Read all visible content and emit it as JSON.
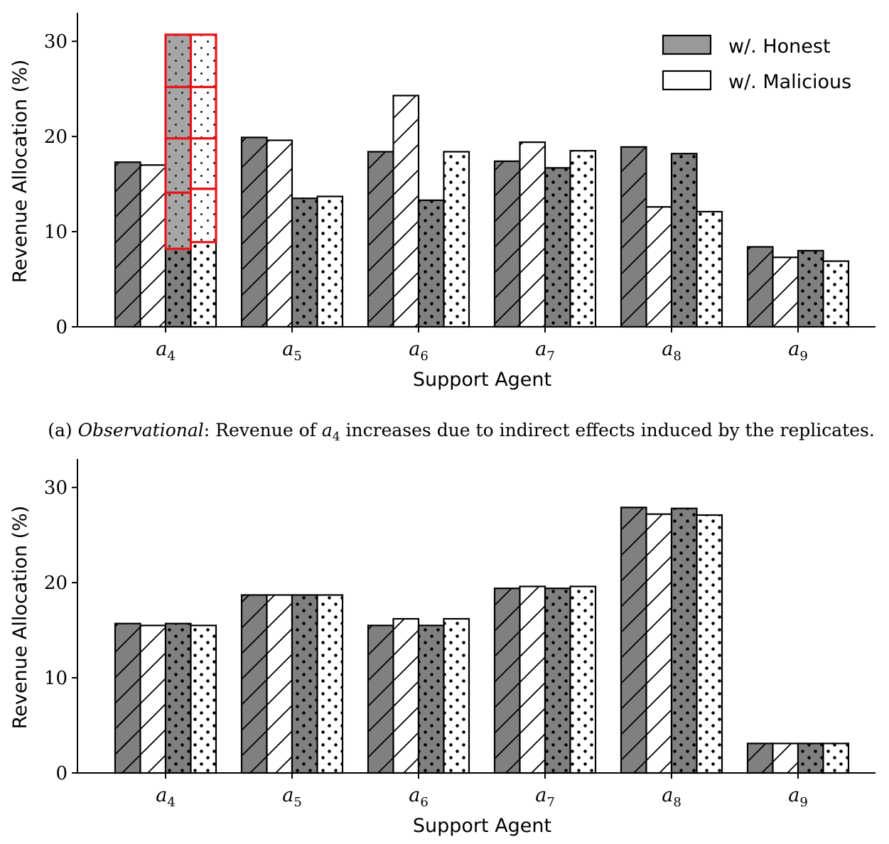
{
  "colors": {
    "honest_fill": "#808080",
    "malicious_fill": "#ffffff",
    "legend_honest_fill": "#999999",
    "edge": "#000000",
    "highlight": "#e8141a"
  },
  "legend": {
    "honest": "w/. Honest",
    "malicious": "w/. Malicious"
  },
  "caption_a": {
    "prefix": "(a) ",
    "emph": "Observational",
    "after_emph": ": Revenue of ",
    "agent_base": "a",
    "agent_sub": "4",
    "suffix": " increases due to indirect effects induced by the replicates."
  },
  "chart_data": [
    {
      "type": "bar",
      "panel": "a",
      "xlabel": "Support Agent",
      "ylabel": "Revenue Allocation (%)",
      "ylim": [
        0,
        33
      ],
      "yticks": [
        0,
        10,
        20,
        30
      ],
      "categories": [
        {
          "base": "a",
          "sub": "4"
        },
        {
          "base": "a",
          "sub": "5"
        },
        {
          "base": "a",
          "sub": "6"
        },
        {
          "base": "a",
          "sub": "7"
        },
        {
          "base": "a",
          "sub": "8"
        },
        {
          "base": "a",
          "sub": "9"
        }
      ],
      "series": [
        {
          "name": "Honest (hatched)",
          "fill": "honest",
          "pattern": "hatch",
          "values": [
            17.3,
            19.9,
            18.4,
            17.4,
            18.9,
            8.4
          ]
        },
        {
          "name": "Malicious (hatched)",
          "fill": "malicious",
          "pattern": "hatch",
          "values": [
            17.0,
            19.6,
            24.3,
            19.4,
            12.6,
            7.3
          ]
        },
        {
          "name": "Honest (dotted)",
          "fill": "honest",
          "pattern": "dots",
          "values": [
            8.2,
            13.5,
            13.3,
            16.7,
            18.2,
            8.0
          ]
        },
        {
          "name": "Malicious (dotted)",
          "fill": "malicious",
          "pattern": "dots",
          "values": [
            8.9,
            13.7,
            18.4,
            18.5,
            12.1,
            6.9
          ]
        }
      ],
      "stacked_replicates": [
        {
          "category_index": 0,
          "series_index": 2,
          "segments": [
            8.2,
            14.1,
            19.8,
            25.2,
            30.7
          ]
        },
        {
          "category_index": 0,
          "series_index": 3,
          "segments": [
            8.9,
            14.5,
            19.8,
            25.2,
            30.7
          ]
        }
      ]
    },
    {
      "type": "bar",
      "panel": "b",
      "xlabel": "Support Agent",
      "ylabel": "Revenue Allocation (%)",
      "ylim": [
        0,
        33
      ],
      "yticks": [
        0,
        10,
        20,
        30
      ],
      "categories": [
        {
          "base": "a",
          "sub": "4"
        },
        {
          "base": "a",
          "sub": "5"
        },
        {
          "base": "a",
          "sub": "6"
        },
        {
          "base": "a",
          "sub": "7"
        },
        {
          "base": "a",
          "sub": "8"
        },
        {
          "base": "a",
          "sub": "9"
        }
      ],
      "series": [
        {
          "name": "Honest (hatched)",
          "fill": "honest",
          "pattern": "hatch",
          "values": [
            15.7,
            18.7,
            15.5,
            19.4,
            27.9,
            3.1
          ]
        },
        {
          "name": "Malicious (hatched)",
          "fill": "malicious",
          "pattern": "hatch",
          "values": [
            15.5,
            18.7,
            16.2,
            19.6,
            27.2,
            3.1
          ]
        },
        {
          "name": "Honest (dotted)",
          "fill": "honest",
          "pattern": "dots",
          "values": [
            15.7,
            18.7,
            15.5,
            19.4,
            27.8,
            3.1
          ]
        },
        {
          "name": "Malicious (dotted)",
          "fill": "malicious",
          "pattern": "dots",
          "values": [
            15.5,
            18.7,
            16.2,
            19.6,
            27.1,
            3.1
          ]
        }
      ]
    }
  ]
}
